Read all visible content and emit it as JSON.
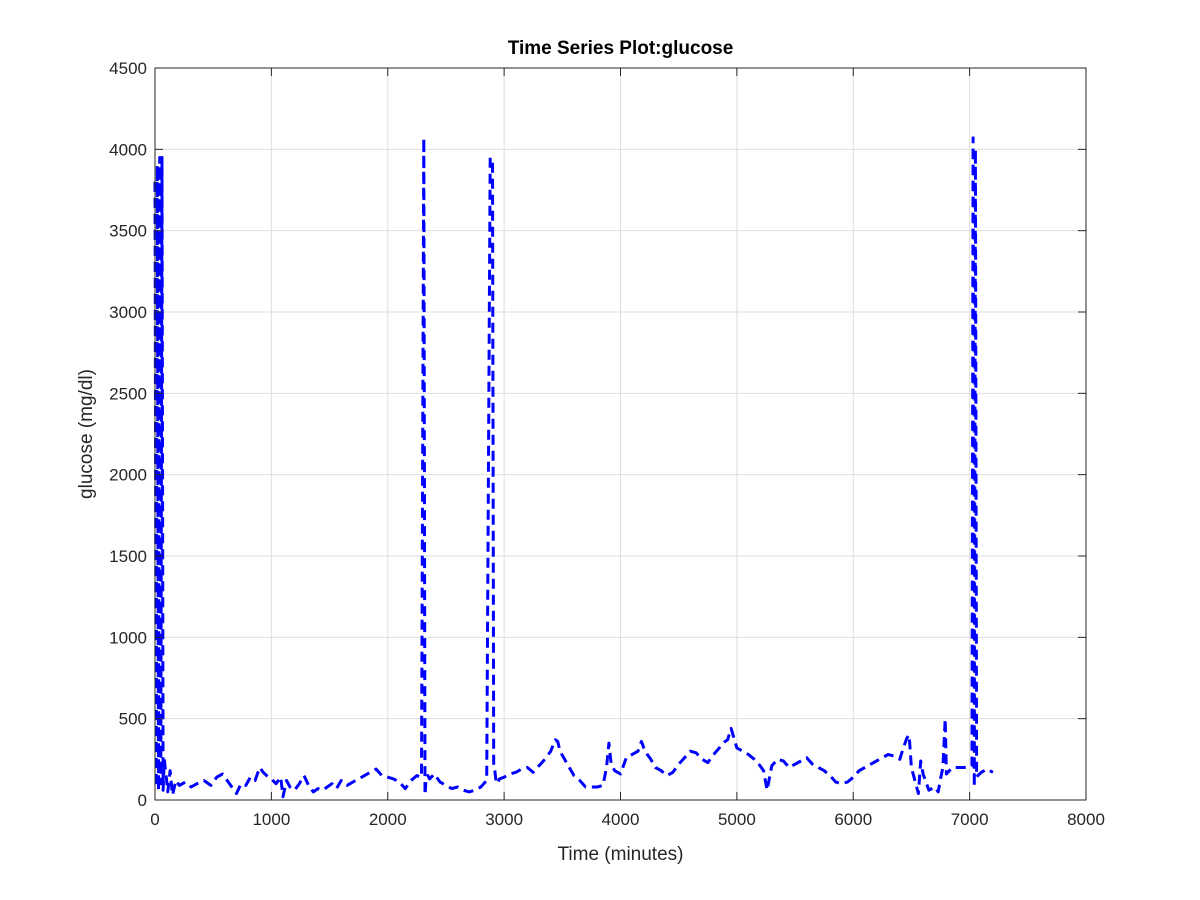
{
  "chart_data": {
    "type": "line",
    "title": "Time Series Plot:glucose",
    "xlabel": "Time (minutes)",
    "ylabel": "glucose (mg/dl)",
    "xlim": [
      0,
      8000
    ],
    "ylim": [
      0,
      4500
    ],
    "xticks": [
      0,
      1000,
      2000,
      3000,
      4000,
      5000,
      6000,
      7000,
      8000
    ],
    "yticks": [
      0,
      500,
      1000,
      1500,
      2000,
      2500,
      3000,
      3500,
      4000,
      4500
    ],
    "grid": true,
    "line_style": "dashed",
    "line_color": "#0000ff",
    "series": [
      {
        "x": [
          0,
          10,
          20,
          30,
          40,
          50,
          60,
          70,
          80,
          95,
          110,
          130,
          150,
          180,
          210,
          260,
          310,
          360,
          420,
          480,
          530,
          580,
          620,
          660,
          700,
          740,
          780,
          820,
          860,
          900,
          930,
          960,
          1000,
          1040,
          1080,
          1100,
          1130,
          1160,
          1200,
          1240,
          1280,
          1320,
          1360,
          1400,
          1440,
          1480,
          1520,
          1560,
          1600,
          1650,
          1700,
          1750,
          1800,
          1850,
          1900,
          1950,
          2000,
          2050,
          2100,
          2150,
          2200,
          2250,
          2290,
          2310,
          2320,
          2330,
          2345,
          2360,
          2400,
          2450,
          2500,
          2550,
          2600,
          2650,
          2700,
          2750,
          2800,
          2850,
          2880,
          2900,
          2910,
          2920,
          2930,
          2940,
          2960,
          3000,
          3050,
          3100,
          3150,
          3200,
          3250,
          3300,
          3350,
          3400,
          3440,
          3460,
          3480,
          3520,
          3560,
          3600,
          3650,
          3700,
          3750,
          3800,
          3850,
          3880,
          3900,
          3920,
          3950,
          4000,
          4050,
          4100,
          4150,
          4180,
          4200,
          4230,
          4260,
          4300,
          4350,
          4400,
          4450,
          4500,
          4550,
          4600,
          4650,
          4700,
          4750,
          4800,
          4850,
          4900,
          4920,
          4950,
          5000,
          5050,
          5100,
          5150,
          5200,
          5230,
          5260,
          5300,
          5350,
          5400,
          5450,
          5500,
          5550,
          5600,
          5650,
          5700,
          5750,
          5800,
          5850,
          5900,
          5950,
          6000,
          6050,
          6100,
          6150,
          6200,
          6250,
          6300,
          6350,
          6400,
          6430,
          6460,
          6480,
          6500,
          6530,
          6560,
          6580,
          6600,
          6650,
          6700,
          6730,
          6750,
          6770,
          6790,
          6800,
          6850,
          6900,
          6950,
          7000,
          7020,
          7030,
          7040,
          7050,
          7060,
          7070,
          7100,
          7150,
          7200
        ],
        "values": [
          3800,
          80,
          3900,
          60,
          3950,
          100,
          3950,
          60,
          250,
          150,
          50,
          180,
          30,
          120,
          90,
          110,
          80,
          100,
          120,
          90,
          140,
          160,
          120,
          80,
          40,
          100,
          90,
          140,
          120,
          200,
          170,
          150,
          130,
          100,
          140,
          20,
          120,
          80,
          60,
          100,
          150,
          90,
          50,
          70,
          60,
          80,
          100,
          70,
          120,
          90,
          110,
          130,
          150,
          170,
          190,
          150,
          140,
          130,
          110,
          70,
          120,
          150,
          140,
          4070,
          30,
          140,
          150,
          130,
          160,
          110,
          90,
          70,
          80,
          60,
          50,
          60,
          80,
          120,
          3950,
          3920,
          200,
          180,
          120,
          100,
          130,
          140,
          160,
          170,
          190,
          200,
          170,
          210,
          250,
          300,
          370,
          360,
          300,
          250,
          200,
          150,
          120,
          80,
          80,
          80,
          90,
          200,
          350,
          220,
          180,
          160,
          260,
          280,
          300,
          360,
          320,
          280,
          250,
          200,
          180,
          150,
          170,
          220,
          260,
          300,
          290,
          250,
          230,
          280,
          320,
          360,
          370,
          440,
          320,
          300,
          280,
          250,
          210,
          180,
          60,
          210,
          250,
          240,
          200,
          220,
          240,
          260,
          220,
          200,
          180,
          150,
          110,
          100,
          110,
          140,
          180,
          200,
          220,
          240,
          260,
          280,
          270,
          250,
          320,
          380,
          400,
          200,
          120,
          40,
          240,
          160,
          60,
          80,
          50,
          130,
          200,
          500,
          160,
          200,
          200,
          200,
          200,
          210,
          4070,
          80,
          4000,
          140,
          150,
          170,
          190,
          170
        ]
      }
    ]
  }
}
